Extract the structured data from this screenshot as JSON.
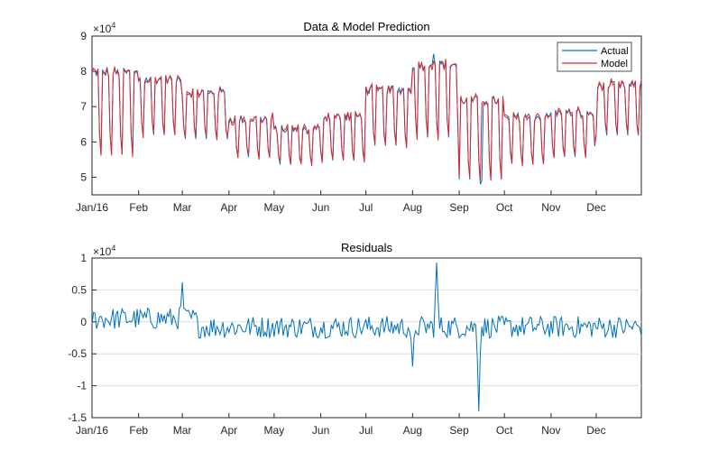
{
  "colors": {
    "actual": "#0072BD",
    "model": "#D9282F",
    "axes": "#262626",
    "grid": "#DEDEDE"
  },
  "chart_data": [
    {
      "type": "line",
      "title": "Data & Model Prediction",
      "exponent_label": "×10",
      "exponent_value": "4",
      "ylim": [
        4.5,
        9
      ],
      "yticks": [
        "4.5",
        "5",
        "6",
        "7",
        "8",
        "9"
      ],
      "yticks_shown": [
        {
          "v": 5,
          "t": "5"
        },
        {
          "v": 6,
          "t": "6"
        },
        {
          "v": 7,
          "t": "7"
        },
        {
          "v": 8,
          "t": "8"
        },
        {
          "v": 9,
          "t": "9"
        }
      ],
      "xticks": [
        "Jan/16",
        "Feb",
        "Mar",
        "Apr",
        "May",
        "Jun",
        "Jul",
        "Aug",
        "Sep",
        "Oct",
        "Nov",
        "Dec"
      ],
      "legend": {
        "position": "top-right",
        "entries": [
          "Actual",
          "Model"
        ]
      },
      "series": [
        {
          "name": "Actual",
          "description": "daily data, values x 10^4"
        },
        {
          "name": "Model",
          "description": "model prediction, values x 10^4"
        }
      ],
      "grid": false,
      "approx_monthly_peaks": [
        8.3,
        8.0,
        7.6,
        6.8,
        6.5,
        6.9,
        7.7,
        8.5,
        7.5,
        6.9,
        7.0,
        7.8
      ],
      "approx_monthly_troughs": [
        5.5,
        6.1,
        6.0,
        5.5,
        5.3,
        5.4,
        5.8,
        6.0,
        4.8,
        5.3,
        5.5,
        6.1
      ]
    },
    {
      "type": "line",
      "title": "Residuals",
      "exponent_label": "×10",
      "exponent_value": "4",
      "ylim": [
        -1.5,
        1
      ],
      "yticks_shown": [
        {
          "v": 1,
          "t": "1"
        },
        {
          "v": 0.5,
          "t": "0.5"
        },
        {
          "v": 0,
          "t": "0"
        },
        {
          "v": -0.5,
          "t": "-0.5"
        },
        {
          "v": -1,
          "t": "-1"
        },
        {
          "v": -1.5,
          "t": "-1.5"
        }
      ],
      "xticks": [
        "Jan/16",
        "Feb",
        "Mar",
        "Apr",
        "May",
        "Jun",
        "Jul",
        "Aug",
        "Sep",
        "Oct",
        "Nov",
        "Dec"
      ],
      "grid": true,
      "notable_points": [
        {
          "month": "Mar",
          "day": 1,
          "value": 0.62
        },
        {
          "month": "Aug",
          "day": 1,
          "value": -0.7
        },
        {
          "month": "Aug",
          "day": 17,
          "value": 0.93
        },
        {
          "month": "Sep",
          "day": 14,
          "value": -1.4
        }
      ]
    }
  ]
}
